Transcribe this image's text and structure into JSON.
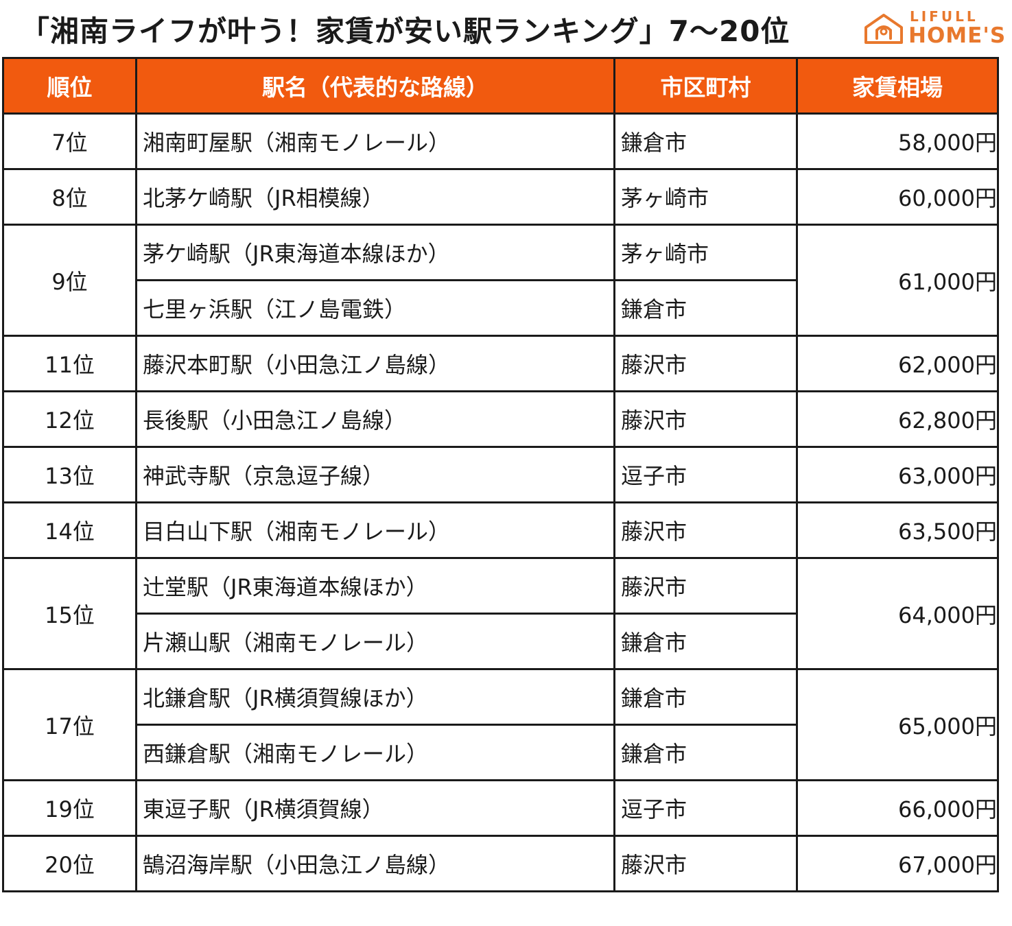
{
  "title": "「湘南ライフが叶う！家賃が安い駅ランキング」7〜20位",
  "logo": {
    "line1": "LIFULL",
    "line2": "HOME'S",
    "color": "#e8782d"
  },
  "header_color": "#f15a0f",
  "headers": {
    "rank": "順位",
    "station": "駅名（代表的な路線）",
    "city": "市区町村",
    "rent": "家賃相場"
  },
  "rows": [
    {
      "rank": "7位",
      "rent": "58,000円",
      "stations": [
        {
          "station": "湘南町屋駅（湘南モノレール）",
          "city": "鎌倉市"
        }
      ]
    },
    {
      "rank": "8位",
      "rent": "60,000円",
      "stations": [
        {
          "station": "北茅ケ崎駅（JR相模線）",
          "city": "茅ヶ崎市"
        }
      ]
    },
    {
      "rank": "9位",
      "rent": "61,000円",
      "stations": [
        {
          "station": "茅ケ崎駅（JR東海道本線ほか）",
          "city": "茅ヶ崎市"
        },
        {
          "station": "七里ヶ浜駅（江ノ島電鉄）",
          "city": "鎌倉市"
        }
      ]
    },
    {
      "rank": "11位",
      "rent": "62,000円",
      "stations": [
        {
          "station": "藤沢本町駅（小田急江ノ島線）",
          "city": "藤沢市"
        }
      ]
    },
    {
      "rank": "12位",
      "rent": "62,800円",
      "stations": [
        {
          "station": "長後駅（小田急江ノ島線）",
          "city": "藤沢市"
        }
      ]
    },
    {
      "rank": "13位",
      "rent": "63,000円",
      "stations": [
        {
          "station": "神武寺駅（京急逗子線）",
          "city": "逗子市"
        }
      ]
    },
    {
      "rank": "14位",
      "rent": "63,500円",
      "stations": [
        {
          "station": "目白山下駅（湘南モノレール）",
          "city": "藤沢市"
        }
      ]
    },
    {
      "rank": "15位",
      "rent": "64,000円",
      "stations": [
        {
          "station": "辻堂駅（JR東海道本線ほか）",
          "city": "藤沢市"
        },
        {
          "station": "片瀬山駅（湘南モノレール）",
          "city": "鎌倉市"
        }
      ]
    },
    {
      "rank": "17位",
      "rent": "65,000円",
      "stations": [
        {
          "station": "北鎌倉駅（JR横須賀線ほか）",
          "city": "鎌倉市"
        },
        {
          "station": "西鎌倉駅（湘南モノレール）",
          "city": "鎌倉市"
        }
      ]
    },
    {
      "rank": "19位",
      "rent": "66,000円",
      "stations": [
        {
          "station": "東逗子駅（JR横須賀線）",
          "city": "逗子市"
        }
      ]
    },
    {
      "rank": "20位",
      "rent": "67,000円",
      "stations": [
        {
          "station": "鵠沼海岸駅（小田急江ノ島線）",
          "city": "藤沢市"
        }
      ]
    }
  ]
}
